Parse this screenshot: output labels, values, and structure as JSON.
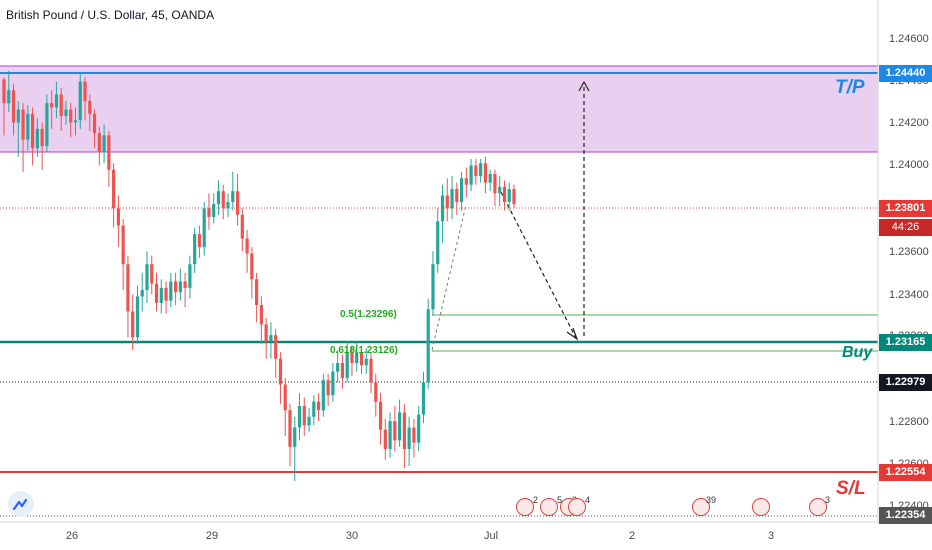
{
  "header": {
    "title": "British Pound / U.S. Dollar, 45, OANDA"
  },
  "colors": {
    "up": "#26a69a",
    "down": "#ef5350",
    "zone": "#e4c4ec",
    "tp_line": "#1e88e5",
    "buy_line": "#00897b",
    "sl_line": "#e53935",
    "fib": "#4caf50"
  },
  "price_axis": {
    "ticks": [
      "1.24600",
      "1.24400",
      "1.24200",
      "1.24000",
      "1.23600",
      "1.23400",
      "1.23200",
      "1.22800",
      "1.22600",
      "1.22400"
    ]
  },
  "time_axis": {
    "ticks": [
      "26",
      "29",
      "30",
      "Jul",
      "2",
      "3"
    ]
  },
  "labels": {
    "tp": "T/P",
    "buy": "Buy",
    "sl": "S/L",
    "fib_05": "0.5(1.23296)",
    "fib_0618": "0.618(1.23126)"
  },
  "price_tags": {
    "tp": "1.24440",
    "current": "1.23801",
    "timer": "44:26",
    "buy": "1.23165",
    "black": "1.22979",
    "sl": "1.22554",
    "low": "1.22354"
  },
  "events": [
    {
      "count": "2",
      "icon": "flag-icon"
    },
    {
      "count": "5",
      "icon": "flag-icon"
    },
    {
      "count": "2",
      "icon": "flag-icon"
    },
    {
      "count": "4",
      "icon": "flag-icon"
    },
    {
      "count": "39",
      "icon": "flag-icon"
    },
    {
      "count": "",
      "icon": "flag-icon"
    },
    {
      "count": "3",
      "icon": "flag-icon"
    }
  ],
  "chart_data": {
    "type": "candlestick",
    "symbol": "GBPUSD",
    "timeframe": "45",
    "ylim": [
      1.2232,
      1.2475
    ],
    "zone": [
      1.2407,
      1.2446
    ],
    "levels": {
      "tp": 1.2444,
      "buy": 1.23165,
      "stop_loss": 1.22554,
      "current": 1.23801,
      "black": 1.22979
    },
    "fib": {
      "0.5": 1.23296,
      "0.618": 1.23126
    },
    "x": [
      "26",
      "29",
      "30",
      "Jul",
      "2",
      "3"
    ],
    "series": [
      {
        "values": [
          [
            1.2438,
            1.2427,
            1.2439,
            1.2412
          ],
          [
            1.2427,
            1.2433,
            1.2442,
            1.2423
          ],
          [
            1.2433,
            1.2418,
            1.2436,
            1.2412
          ],
          [
            1.2418,
            1.2424,
            1.2428,
            1.2402
          ],
          [
            1.2424,
            1.241,
            1.2427,
            1.2395
          ],
          [
            1.241,
            1.2422,
            1.2426,
            1.2405
          ],
          [
            1.2422,
            1.2406,
            1.2425,
            1.2398
          ],
          [
            1.2406,
            1.2415,
            1.242,
            1.2402
          ],
          [
            1.2415,
            1.2407,
            1.2418,
            1.2396
          ],
          [
            1.2407,
            1.2427,
            1.2431,
            1.2404
          ],
          [
            1.2427,
            1.2425,
            1.2433,
            1.2415
          ],
          [
            1.2425,
            1.2431,
            1.2437,
            1.242
          ],
          [
            1.2431,
            1.2421,
            1.2434,
            1.2414
          ],
          [
            1.2421,
            1.2424,
            1.2428,
            1.2417
          ],
          [
            1.2424,
            1.2418,
            1.2427,
            1.2411
          ],
          [
            1.2418,
            1.2419,
            1.2425,
            1.2412
          ],
          [
            1.2419,
            1.2437,
            1.2441,
            1.2415
          ],
          [
            1.2437,
            1.2428,
            1.2439,
            1.2419
          ],
          [
            1.2428,
            1.2422,
            1.2431,
            1.2414
          ],
          [
            1.2422,
            1.2413,
            1.2424,
            1.2406
          ],
          [
            1.2413,
            1.2404,
            1.2416,
            1.2398
          ],
          [
            1.2404,
            1.2412,
            1.2417,
            1.2399
          ],
          [
            1.2412,
            1.2396,
            1.2414,
            1.2388
          ],
          [
            1.2396,
            1.2378,
            1.2399,
            1.2369
          ],
          [
            1.2378,
            1.237,
            1.2384,
            1.236
          ],
          [
            1.237,
            1.2352,
            1.2373,
            1.234
          ],
          [
            1.2352,
            1.233,
            1.2356,
            1.2318
          ],
          [
            1.233,
            1.2318,
            1.2338,
            1.2312
          ],
          [
            1.2318,
            1.2337,
            1.2342,
            1.2315
          ],
          [
            1.2337,
            1.234,
            1.2348,
            1.233
          ],
          [
            1.234,
            1.2352,
            1.2358,
            1.2334
          ],
          [
            1.2352,
            1.2343,
            1.2356,
            1.2338
          ],
          [
            1.2343,
            1.2334,
            1.2348,
            1.233
          ],
          [
            1.2334,
            1.2341,
            1.2345,
            1.2329
          ],
          [
            1.2341,
            1.2335,
            1.2344,
            1.2329
          ],
          [
            1.2335,
            1.2344,
            1.2348,
            1.2332
          ],
          [
            1.2344,
            1.2339,
            1.2348,
            1.2333
          ],
          [
            1.2339,
            1.2344,
            1.235,
            1.2335
          ],
          [
            1.2344,
            1.2341,
            1.2348,
            1.2332
          ],
          [
            1.2341,
            1.2352,
            1.2356,
            1.2336
          ],
          [
            1.2352,
            1.2366,
            1.2369,
            1.2348
          ],
          [
            1.2366,
            1.236,
            1.237,
            1.2355
          ],
          [
            1.236,
            1.2378,
            1.2381,
            1.2356
          ],
          [
            1.2378,
            1.2374,
            1.2385,
            1.2368
          ],
          [
            1.2374,
            1.238,
            1.2385,
            1.2371
          ],
          [
            1.238,
            1.2386,
            1.2391,
            1.2375
          ],
          [
            1.2386,
            1.2378,
            1.2389,
            1.2373
          ],
          [
            1.2378,
            1.2381,
            1.2385,
            1.2374
          ],
          [
            1.2381,
            1.2386,
            1.2395,
            1.2377
          ],
          [
            1.2386,
            1.2375,
            1.2394,
            1.237
          ],
          [
            1.2375,
            1.2364,
            1.2378,
            1.2358
          ],
          [
            1.2364,
            1.2357,
            1.2368,
            1.2348
          ],
          [
            1.2357,
            1.2345,
            1.236,
            1.2336
          ],
          [
            1.2345,
            1.2333,
            1.2348,
            1.2325
          ],
          [
            1.2333,
            1.2324,
            1.2337,
            1.2315
          ],
          [
            1.2324,
            1.2316,
            1.2327,
            1.2308
          ],
          [
            1.2316,
            1.2319,
            1.2325,
            1.2308
          ],
          [
            1.2319,
            1.2308,
            1.2322,
            1.2299
          ],
          [
            1.2308,
            1.2296,
            1.2311,
            1.2287
          ],
          [
            1.2296,
            1.2284,
            1.2299,
            1.2272
          ],
          [
            1.2284,
            1.2267,
            1.2287,
            1.2258
          ],
          [
            1.2267,
            1.2276,
            1.2281,
            1.2251
          ],
          [
            1.2276,
            1.2286,
            1.2292,
            1.227
          ],
          [
            1.2286,
            1.2277,
            1.229,
            1.2272
          ],
          [
            1.2277,
            1.2281,
            1.2285,
            1.2274
          ],
          [
            1.2281,
            1.2288,
            1.2291,
            1.2277
          ],
          [
            1.2288,
            1.2284,
            1.2292,
            1.2279
          ],
          [
            1.2284,
            1.2298,
            1.2301,
            1.2281
          ],
          [
            1.2298,
            1.2291,
            1.2301,
            1.2286
          ],
          [
            1.2291,
            1.2302,
            1.2306,
            1.2288
          ],
          [
            1.2302,
            1.2306,
            1.2312,
            1.2297
          ],
          [
            1.2306,
            1.2299,
            1.231,
            1.2294
          ],
          [
            1.2299,
            1.2311,
            1.2316,
            1.2297
          ],
          [
            1.2311,
            1.2306,
            1.2314,
            1.23
          ],
          [
            1.2306,
            1.2311,
            1.2316,
            1.2302
          ],
          [
            1.2311,
            1.2305,
            1.2314,
            1.2301
          ],
          [
            1.2305,
            1.2308,
            1.2313,
            1.2301
          ],
          [
            1.2308,
            1.2297,
            1.2311,
            1.2292
          ],
          [
            1.2297,
            1.2288,
            1.2301,
            1.2281
          ],
          [
            1.2288,
            1.2275,
            1.2292,
            1.2268
          ],
          [
            1.2275,
            1.2266,
            1.228,
            1.2261
          ],
          [
            1.2266,
            1.2279,
            1.2283,
            1.2262
          ],
          [
            1.2279,
            1.227,
            1.2286,
            1.2265
          ],
          [
            1.227,
            1.2283,
            1.2289,
            1.2267
          ],
          [
            1.2283,
            1.2266,
            1.2287,
            1.2257
          ],
          [
            1.2266,
            1.2276,
            1.2281,
            1.2258
          ],
          [
            1.2276,
            1.2269,
            1.228,
            1.2262
          ],
          [
            1.2269,
            1.2282,
            1.2286,
            1.2265
          ],
          [
            1.2282,
            1.2297,
            1.2302,
            1.2278
          ],
          [
            1.2297,
            1.2331,
            1.2336,
            1.2294
          ],
          [
            1.2331,
            1.2352,
            1.2358,
            1.2328
          ],
          [
            1.2352,
            1.2372,
            1.2378,
            1.2348
          ],
          [
            1.2372,
            1.2384,
            1.2389,
            1.2362
          ],
          [
            1.2384,
            1.2378,
            1.2392,
            1.2372
          ],
          [
            1.2378,
            1.2387,
            1.2393,
            1.2373
          ],
          [
            1.2387,
            1.2381,
            1.239,
            1.2375
          ],
          [
            1.2381,
            1.2392,
            1.2395,
            1.2377
          ],
          [
            1.2392,
            1.2389,
            1.2397,
            1.2383
          ],
          [
            1.2389,
            1.2398,
            1.2401,
            1.2386
          ],
          [
            1.2398,
            1.2393,
            1.2401,
            1.2389
          ],
          [
            1.2393,
            1.2399,
            1.2401,
            1.239
          ],
          [
            1.2399,
            1.239,
            1.2402,
            1.2385
          ],
          [
            1.239,
            1.2394,
            1.2396,
            1.2386
          ],
          [
            1.2394,
            1.2385,
            1.2396,
            1.2379
          ],
          [
            1.2385,
            1.2388,
            1.2393,
            1.2379
          ],
          [
            1.2388,
            1.2381,
            1.2391,
            1.2377
          ],
          [
            1.2381,
            1.2387,
            1.239,
            1.2377
          ],
          [
            1.2387,
            1.238,
            1.2389,
            1.2378
          ]
        ]
      }
    ]
  }
}
